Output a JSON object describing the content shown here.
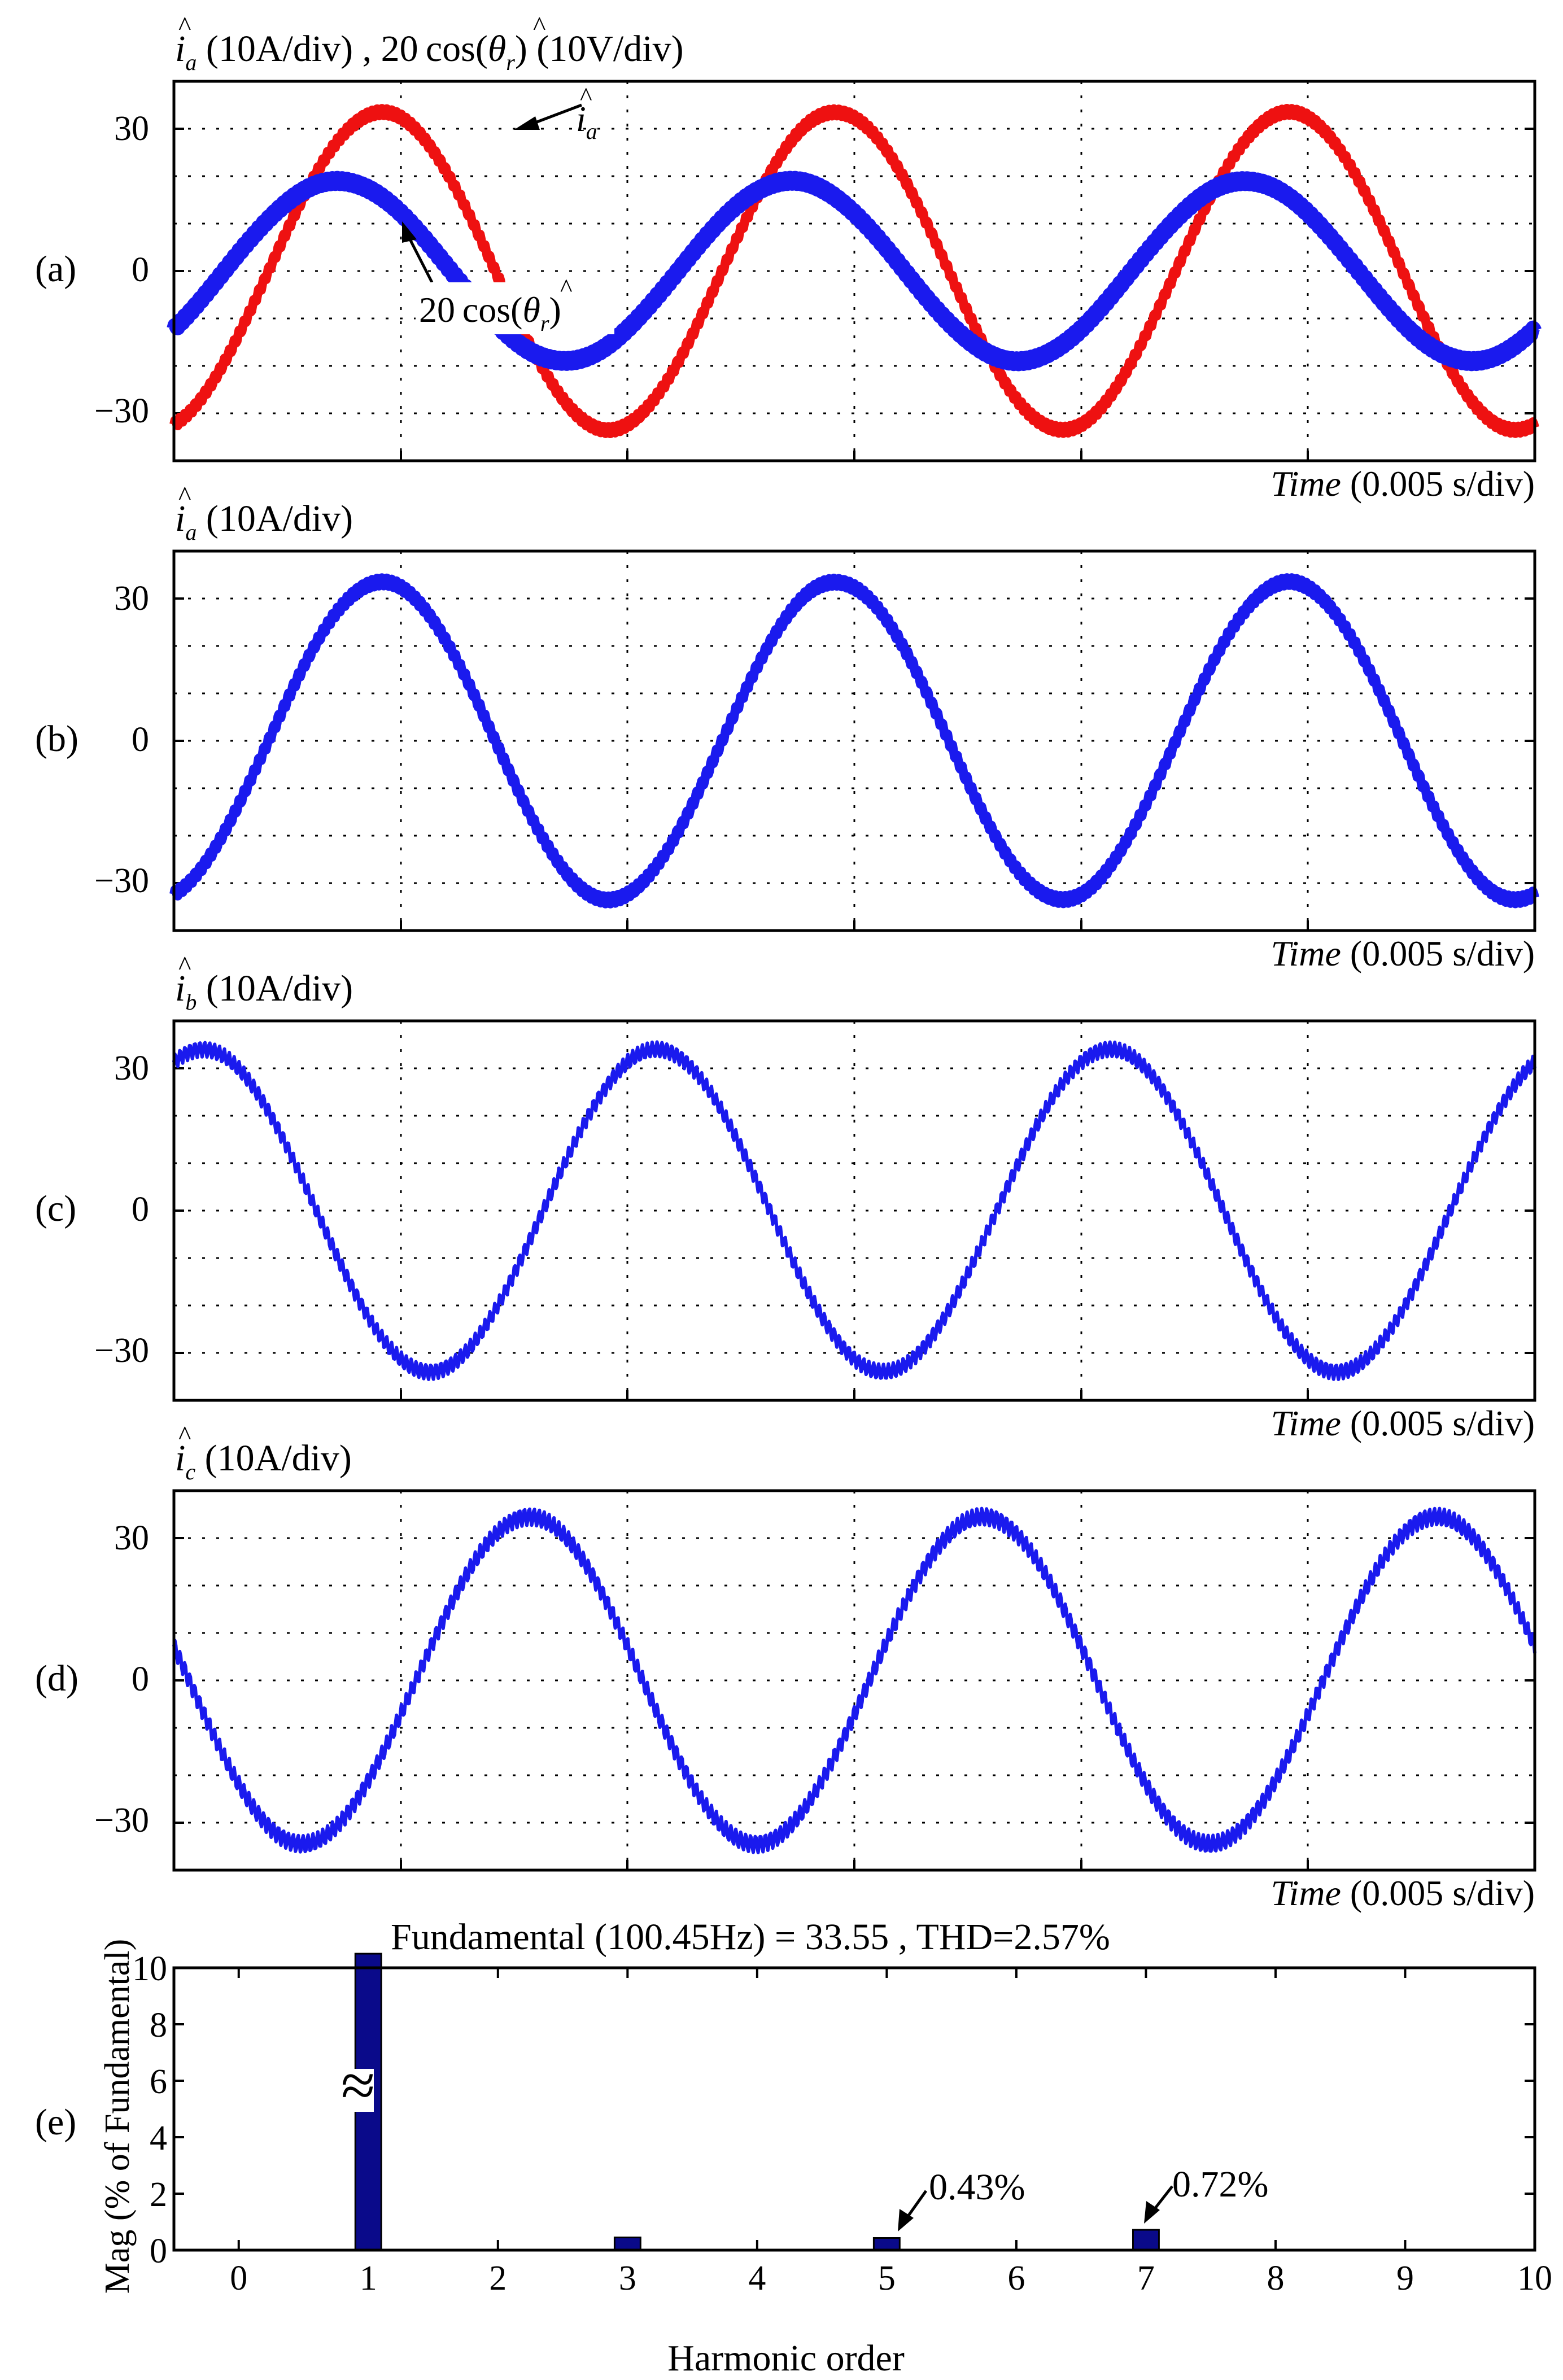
{
  "figure": {
    "panels": [
      {
        "id": "a",
        "label": "(a)",
        "title": {
          "base": "i",
          "sub": "a",
          "hat": "^",
          "rest": " (10A/div) , 20 cos(",
          "theta": "θ",
          "theta_sub": "r",
          "tail": ") (10V/div)"
        },
        "xlabel_italic": "Time",
        "xlabel_rest": " (0.005 s/div)",
        "yticks": [
          "30",
          "0",
          "−30"
        ],
        "annotations": [
          {
            "name": "ia-annotation",
            "base": "i",
            "sub": "a"
          },
          {
            "name": "cos-annotation",
            "text": "20 cos(",
            "theta": "θ",
            "theta_sub": "r",
            "tail": ")"
          }
        ]
      },
      {
        "id": "b",
        "label": "(b)",
        "title": {
          "base": "i",
          "sub": "a",
          "rest": " (10A/div)"
        },
        "xlabel_italic": "Time",
        "xlabel_rest": " (0.005 s/div)",
        "yticks": [
          "30",
          "0",
          "−30"
        ]
      },
      {
        "id": "c",
        "label": "(c)",
        "title": {
          "base": "i",
          "sub": "b",
          "rest": " (10A/div)"
        },
        "xlabel_italic": "Time",
        "xlabel_rest": " (0.005 s/div)",
        "yticks": [
          "30",
          "0",
          "−30"
        ]
      },
      {
        "id": "d",
        "label": "(d)",
        "title": {
          "base": "i",
          "sub": "c",
          "rest": " (10A/div)"
        },
        "xlabel_italic": "Time",
        "xlabel_rest": " (0.005 s/div)",
        "yticks": [
          "30",
          "0",
          "−30"
        ]
      },
      {
        "id": "e",
        "label": "(e)",
        "title": "Fundamental (100.45Hz) = 33.55 , THD=2.57%",
        "ylabel": "Mag (% of Fundamental)",
        "xlabel": "Harmonic order",
        "break_symbol": "≈",
        "annotations": [
          "0.43%",
          "0.72%"
        ]
      }
    ]
  },
  "colors": {
    "red": "#ee1111",
    "blue": "#1a1aee",
    "bar": "#0a0a8a",
    "black": "#000000"
  },
  "chart_data": [
    {
      "type": "line",
      "panel": "a",
      "xlabel": "Time (0.005 s/div)",
      "x_range_s": [
        0,
        0.03
      ],
      "ylim": [
        -40,
        40
      ],
      "yticks": [
        30,
        0,
        -30
      ],
      "series": [
        {
          "name": "i_a (10A/div)",
          "color": "#ee1111",
          "amplitude": 33.5,
          "phase_deg": -75,
          "cycles": 3,
          "ripple": 0.8
        },
        {
          "name": "20cos(theta_r) (10V/div)",
          "color": "#1a1aee",
          "amplitude": 19,
          "phase_deg": -40,
          "cycles": 3,
          "ripple": 0.6
        }
      ]
    },
    {
      "type": "line",
      "panel": "b",
      "xlabel": "Time (0.005 s/div)",
      "x_range_s": [
        0,
        0.03
      ],
      "ylim": [
        -40,
        40
      ],
      "yticks": [
        30,
        0,
        -30
      ],
      "series": [
        {
          "name": "i_a",
          "color": "#1a1aee",
          "amplitude": 33.5,
          "phase_deg": -75,
          "cycles": 3,
          "ripple": 0.9
        }
      ]
    },
    {
      "type": "line",
      "panel": "c",
      "xlabel": "Time (0.005 s/div)",
      "x_range_s": [
        0,
        0.03
      ],
      "ylim": [
        -40,
        40
      ],
      "yticks": [
        30,
        0,
        -30
      ],
      "series": [
        {
          "name": "i_b",
          "color": "#1a1aee",
          "amplitude": 34,
          "phase_deg": 67,
          "cycles": 3,
          "ripple": 1.6
        }
      ]
    },
    {
      "type": "line",
      "panel": "d",
      "xlabel": "Time (0.005 s/div)",
      "x_range_s": [
        0,
        0.03
      ],
      "ylim": [
        -40,
        40
      ],
      "yticks": [
        30,
        0,
        -30
      ],
      "series": [
        {
          "name": "i_c",
          "color": "#1a1aee",
          "amplitude": 34.5,
          "phase_deg": -192,
          "cycles": 3,
          "ripple": 1.8
        }
      ]
    },
    {
      "type": "bar",
      "panel": "e",
      "title": "Fundamental (100.45Hz) = 33.55 , THD=2.57%",
      "xlabel": "Harmonic order",
      "ylabel": "Mag (% of Fundamental)",
      "xlim": [
        -0.5,
        10
      ],
      "ylim": [
        0,
        10
      ],
      "xticks": [
        0,
        1,
        2,
        3,
        4,
        5,
        6,
        7,
        8,
        9,
        10
      ],
      "yticks": [
        0,
        2,
        4,
        6,
        8,
        10
      ],
      "categories": [
        1,
        3,
        5,
        7
      ],
      "values": [
        100,
        0.45,
        0.43,
        0.72
      ],
      "data_labels": {
        "5": "0.43%",
        "7": "0.72%"
      },
      "axis_break": true
    }
  ]
}
